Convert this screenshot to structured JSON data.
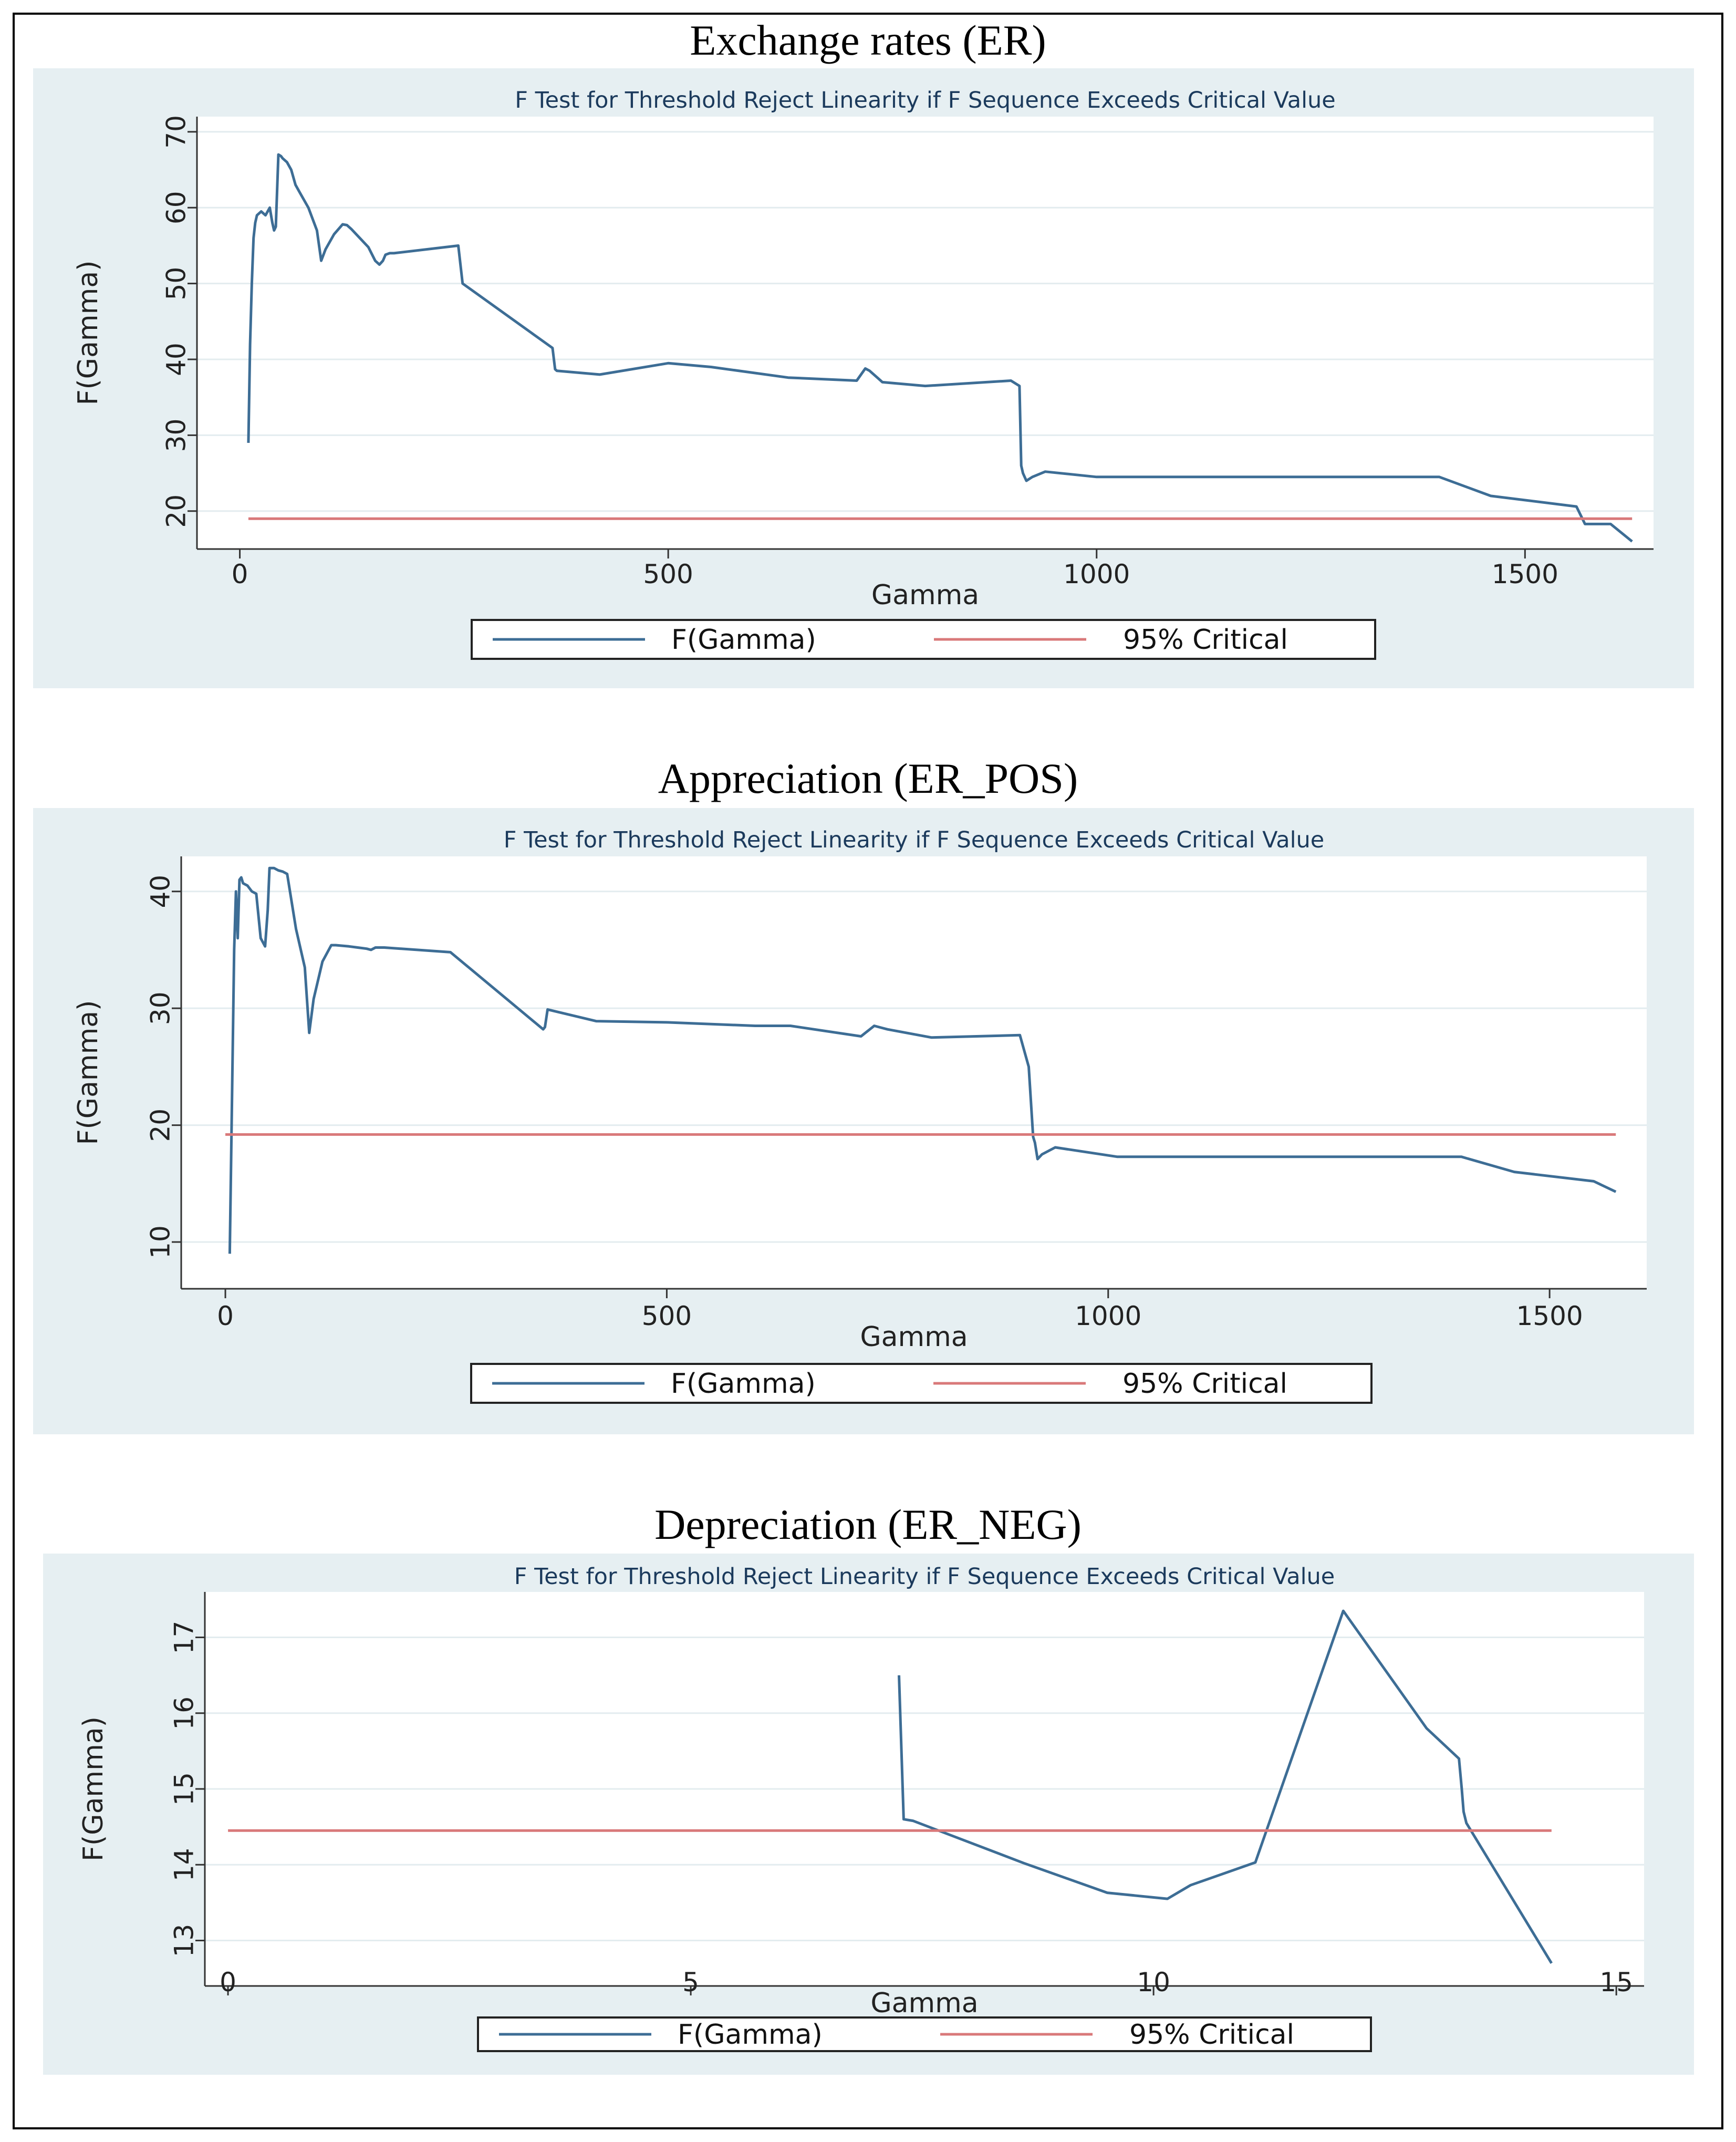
{
  "colors": {
    "panel_bg": "#e6eff2",
    "plot_bg": "#ffffff",
    "grid": "#e3ecef",
    "f_line": "#3d6d95",
    "critical_line": "#d9797a"
  },
  "chart_data": [
    {
      "type": "line",
      "figure_title": "Exchange rates (ER)",
      "title": "F Test for Threshold Reject Linearity if F Sequence Exceeds Critical Value",
      "xlabel": "Gamma",
      "ylabel": "F(Gamma)",
      "xlim": [
        -50,
        1650
      ],
      "ylim": [
        15,
        72
      ],
      "xticks": [
        0,
        500,
        1000,
        1500
      ],
      "xtick_labels": [
        "0",
        "500",
        "1000",
        "1500"
      ],
      "yticks": [
        20,
        30,
        40,
        50,
        60,
        70
      ],
      "ytick_labels": [
        "20",
        "30",
        "40",
        "50",
        "60",
        "70"
      ],
      "grid": true,
      "legend": [
        "F(Gamma)",
        "95% Critical"
      ],
      "series": [
        {
          "name": "F(Gamma)",
          "x": [
            10,
            12,
            14,
            16,
            18,
            20,
            25,
            30,
            35,
            38,
            40,
            42,
            45,
            48,
            50,
            55,
            60,
            65,
            70,
            80,
            90,
            95,
            100,
            110,
            120,
            125,
            130,
            140,
            150,
            158,
            163,
            167,
            170,
            175,
            180,
            255,
            260,
            365,
            368,
            370,
            420,
            500,
            550,
            640,
            720,
            730,
            735,
            745,
            750,
            800,
            900,
            910,
            912,
            914,
            918,
            925,
            940,
            1000,
            1100,
            1200,
            1300,
            1400,
            1460,
            1560,
            1570,
            1600,
            1625
          ],
          "values": [
            29,
            42,
            50,
            56,
            58,
            59,
            59.5,
            59,
            60,
            58,
            57,
            57.5,
            67,
            66.8,
            66.5,
            66,
            65,
            63,
            62,
            60,
            57,
            53,
            54.5,
            56.5,
            57.8,
            57.7,
            57.2,
            56,
            54.8,
            53,
            52.5,
            53,
            53.8,
            54,
            54,
            55,
            50,
            41.5,
            38.7,
            38.5,
            38,
            39.5,
            39,
            37.6,
            37.2,
            38.8,
            38.5,
            37.5,
            37,
            36.5,
            37.2,
            36.5,
            26,
            25,
            24,
            24.5,
            25.2,
            24.5,
            24.5,
            24.5,
            24.5,
            24.5,
            22,
            20.6,
            18.3,
            18.3,
            16
          ]
        },
        {
          "name": "95% Critical",
          "x": [
            10,
            1625
          ],
          "values": [
            19,
            19
          ]
        }
      ]
    },
    {
      "type": "line",
      "figure_title": "Appreciation (ER_POS)",
      "title": "F Test for Threshold Reject Linearity if F Sequence Exceeds Critical Value",
      "xlabel": "Gamma",
      "ylabel": "F(Gamma)",
      "xlim": [
        -50,
        1610
      ],
      "ylim": [
        6,
        43
      ],
      "xticks": [
        0,
        500,
        1000,
        1500
      ],
      "xtick_labels": [
        "0",
        "500",
        "1000",
        "1500"
      ],
      "yticks": [
        10,
        20,
        30,
        40
      ],
      "ytick_labels": [
        "10",
        "20",
        "30",
        "40"
      ],
      "grid": true,
      "legend": [
        "F(Gamma)",
        "95% Critical"
      ],
      "series": [
        {
          "name": "F(Gamma)",
          "x": [
            5,
            10,
            12,
            14,
            16,
            18,
            20,
            25,
            30,
            35,
            40,
            45,
            48,
            50,
            55,
            60,
            65,
            70,
            80,
            90,
            95,
            100,
            110,
            120,
            125,
            140,
            150,
            160,
            165,
            170,
            180,
            255,
            360,
            362,
            365,
            420,
            500,
            600,
            640,
            720,
            730,
            735,
            745,
            750,
            800,
            900,
            910,
            915,
            917,
            920,
            925,
            940,
            1010,
            1100,
            1200,
            1300,
            1400,
            1460,
            1550,
            1575
          ],
          "values": [
            9,
            35,
            40,
            36,
            41,
            41.2,
            40.7,
            40.5,
            40,
            39.8,
            36,
            35.3,
            38.4,
            42,
            42,
            41.8,
            41.7,
            41.5,
            36.8,
            33.5,
            27.9,
            30.8,
            34,
            35.4,
            35.4,
            35.3,
            35.2,
            35.1,
            35,
            35.2,
            35.2,
            34.8,
            28.2,
            28.4,
            29.9,
            28.9,
            28.8,
            28.5,
            28.5,
            27.6,
            28.2,
            28.5,
            28.3,
            28.2,
            27.5,
            27.7,
            25,
            19,
            18.5,
            17.1,
            17.5,
            18.1,
            17.3,
            17.3,
            17.3,
            17.3,
            17.3,
            16,
            15.2,
            14.3
          ]
        },
        {
          "name": "95% Critical",
          "x": [
            0,
            1575
          ],
          "values": [
            19.2,
            19.2
          ]
        }
      ]
    },
    {
      "type": "line",
      "figure_title": "Depreciation (ER_NEG)",
      "title": "F Test for Threshold Reject Linearity if F Sequence Exceeds Critical Value",
      "xlabel": "Gamma",
      "ylabel": "F(Gamma)",
      "xlim": [
        -0.25,
        15.3
      ],
      "ylim": [
        12.4,
        17.6
      ],
      "xticks": [
        0,
        5,
        10,
        15
      ],
      "xtick_labels": [
        "0",
        "5",
        "10",
        "15"
      ],
      "yticks": [
        13,
        14,
        15,
        16,
        17
      ],
      "ytick_labels": [
        "13",
        "14",
        "15",
        "16",
        "17"
      ],
      "grid": true,
      "legend": [
        "F(Gamma)",
        "95% Critical"
      ],
      "series": [
        {
          "name": "F(Gamma)",
          "x": [
            7.25,
            7.3,
            7.4,
            8.6,
            9.5,
            10.15,
            10.4,
            11.1,
            12.05,
            12.95,
            13.3,
            13.33,
            13.35,
            13.38,
            14.3
          ],
          "values": [
            16.5,
            14.6,
            14.58,
            14.02,
            13.63,
            13.55,
            13.73,
            14.03,
            17.35,
            15.8,
            15.4,
            15.0,
            14.7,
            14.55,
            12.7
          ]
        },
        {
          "name": "95% Critical",
          "x": [
            0,
            14.3
          ],
          "values": [
            14.45,
            14.45
          ]
        }
      ]
    }
  ]
}
